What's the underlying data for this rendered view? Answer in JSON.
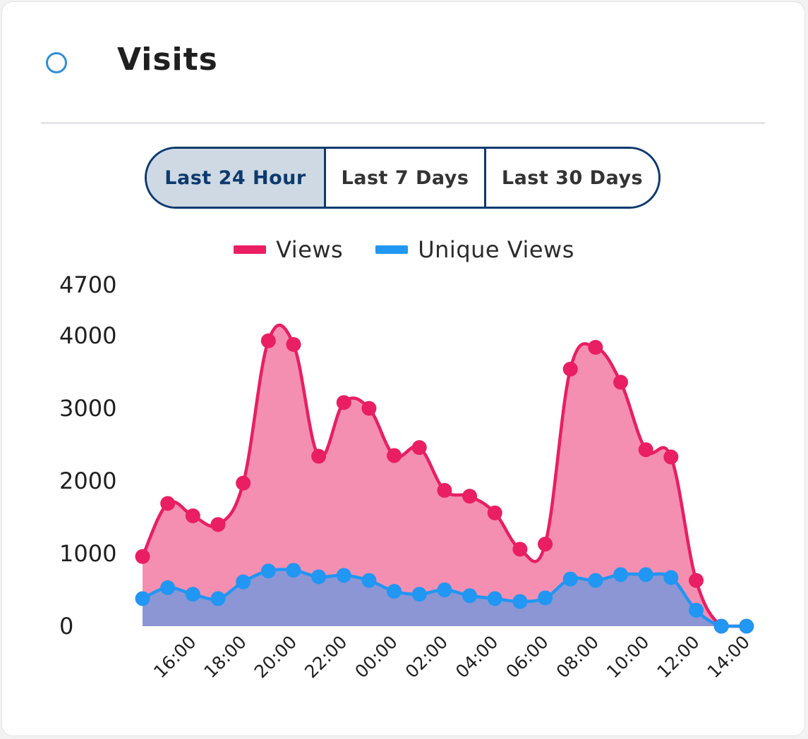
{
  "card": {
    "title": "Visits"
  },
  "range_buttons": [
    {
      "label": "Last 24 Hour",
      "active": true
    },
    {
      "label": "Last 7 Days",
      "active": false
    },
    {
      "label": "Last 30 Days",
      "active": false
    }
  ],
  "colors": {
    "views_line": "#e91e63",
    "views_fill": "#f48fb1",
    "unique_line": "#2196f3",
    "unique_fill": "#8c96d4",
    "accent": "#0d3a6e",
    "status_ring": "#2f8fd8"
  },
  "chart_data": {
    "type": "area",
    "y_ticks": [
      0,
      1000,
      2000,
      3000,
      4000,
      4700
    ],
    "ylim": [
      0,
      4700
    ],
    "x_tick_labels": [
      "16:00",
      "18:00",
      "20:00",
      "22:00",
      "00:00",
      "02:00",
      "04:00",
      "06:00",
      "08:00",
      "10:00",
      "12:00",
      "14:00"
    ],
    "x_tick_indices": [
      2,
      4,
      6,
      8,
      10,
      12,
      14,
      16,
      18,
      20,
      22,
      24
    ],
    "grid": false,
    "legend_position": "top-center",
    "series": [
      {
        "name": "Views",
        "values": [
          960,
          1690,
          1520,
          1400,
          1970,
          3930,
          3880,
          2340,
          3080,
          3000,
          2350,
          2460,
          1870,
          1790,
          1560,
          1060,
          1130,
          3540,
          3840,
          3360,
          2430,
          2330,
          630,
          0,
          0
        ]
      },
      {
        "name": "Unique Views",
        "values": [
          380,
          530,
          440,
          380,
          610,
          760,
          770,
          680,
          700,
          630,
          480,
          440,
          500,
          420,
          380,
          340,
          390,
          650,
          630,
          710,
          710,
          670,
          220,
          0,
          0
        ]
      }
    ]
  }
}
